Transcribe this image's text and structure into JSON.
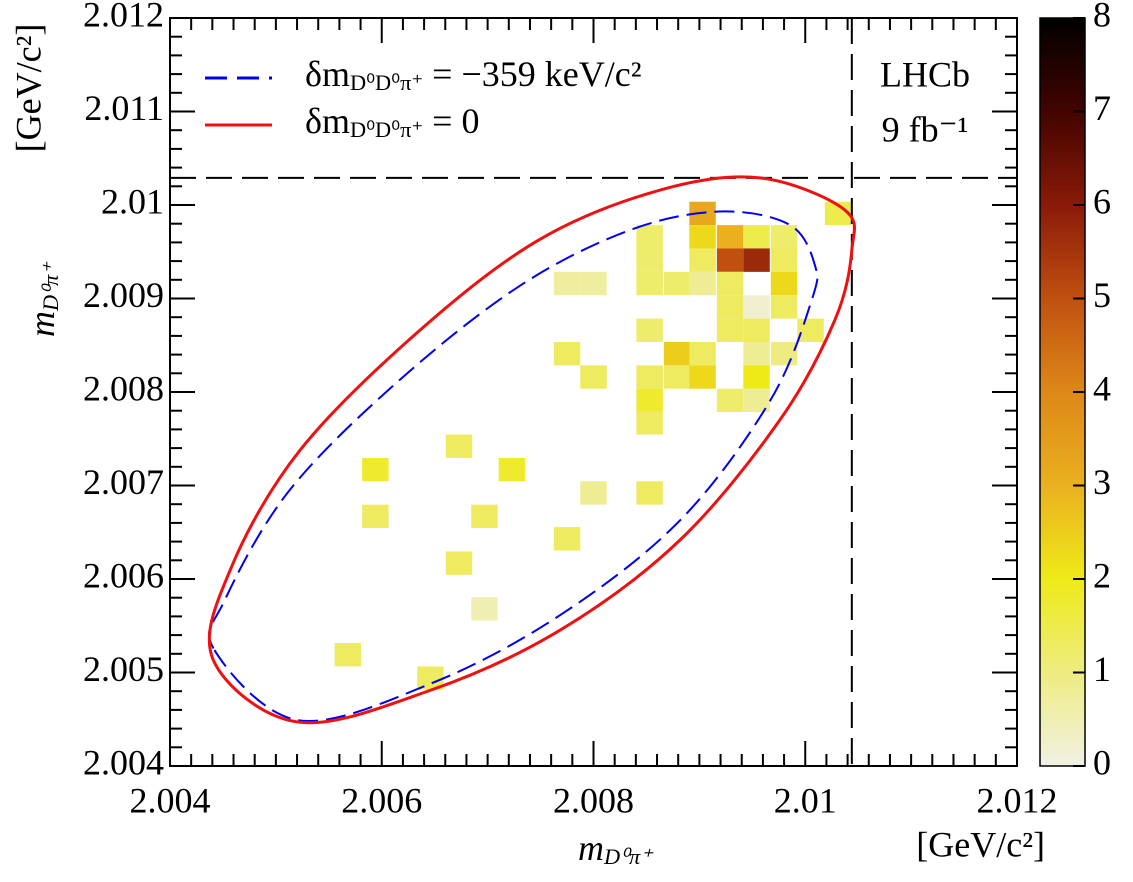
{
  "chart_data": {
    "type": "heatmap",
    "x": [
      2.00903,
      2.01031,
      2.00853,
      2.00903,
      2.00929,
      2.00954,
      2.0098,
      2.00853,
      2.00903,
      2.00929,
      2.00954,
      2.0098,
      2.00775,
      2.008,
      2.00853,
      2.00879,
      2.00903,
      2.00929,
      2.0098,
      2.00929,
      2.00954,
      2.0098,
      2.00853,
      2.00929,
      2.00954,
      2.01005,
      2.00775,
      2.00879,
      2.00903,
      2.00954,
      2.0098,
      2.008,
      2.00853,
      2.00879,
      2.00903,
      2.00954,
      2.00853,
      2.00929,
      2.00954,
      2.00853,
      2.00673,
      2.00594,
      2.00723,
      2.008,
      2.00853,
      2.00594,
      2.00697,
      2.00775,
      2.00673,
      2.00697,
      2.00568,
      2.00646
    ],
    "y": [
      2.00991,
      2.00991,
      2.00966,
      2.00966,
      2.00966,
      2.00966,
      2.00966,
      2.00941,
      2.00941,
      2.00941,
      2.00941,
      2.00941,
      2.00916,
      2.00916,
      2.00916,
      2.00916,
      2.00916,
      2.00916,
      2.00916,
      2.00891,
      2.00891,
      2.00891,
      2.00866,
      2.00866,
      2.00866,
      2.00866,
      2.00841,
      2.00841,
      2.00841,
      2.00841,
      2.00841,
      2.00816,
      2.00816,
      2.00816,
      2.00816,
      2.00816,
      2.00791,
      2.00791,
      2.00791,
      2.00767,
      2.00742,
      2.00717,
      2.00717,
      2.00692,
      2.00692,
      2.00667,
      2.00667,
      2.00643,
      2.00617,
      2.00568,
      2.00519,
      2.00494
    ],
    "values": [
      3.2,
      1.5,
      1.2,
      2.3,
      3.0,
      1.5,
      1.2,
      1.2,
      1.3,
      5.0,
      5.7,
      1.3,
      0.7,
      0.7,
      1.2,
      1.2,
      0.8,
      1.3,
      2.3,
      1.3,
      0.2,
      1.3,
      1.2,
      1.3,
      1.3,
      1.3,
      1.3,
      2.5,
      1.3,
      0.8,
      1.0,
      1.3,
      1.3,
      1.3,
      2.3,
      2.0,
      1.8,
      1.2,
      0.8,
      1.3,
      1.3,
      1.8,
      1.8,
      0.8,
      1.3,
      1.3,
      1.3,
      1.3,
      1.3,
      0.5,
      1.3,
      1.3
    ],
    "bin_size": 0.00025,
    "colormap": [
      "#f1f1e4",
      "#eeec80",
      "#eeea18",
      "#eab020",
      "#dd8818",
      "#c05010",
      "#8a1a08",
      "#420400",
      "#000000"
    ],
    "zlim": [
      0,
      8
    ],
    "zticks": [
      0,
      1,
      2,
      3,
      4,
      5,
      6,
      7,
      8
    ],
    "xlim": [
      2.004,
      2.012
    ],
    "ylim": [
      2.004,
      2.012
    ],
    "xticks": [
      2.004,
      2.006,
      2.008,
      2.01,
      2.012
    ],
    "yticks": [
      2.004,
      2.005,
      2.006,
      2.007,
      2.008,
      2.009,
      2.01,
      2.011,
      2.012
    ],
    "xminor": 10,
    "yminor": 5,
    "x_label": [
      {
        "t": "m"
      },
      {
        "t": "D⁰π⁺",
        "sub": true
      }
    ],
    "y_label": [
      {
        "t": "m"
      },
      {
        "t": "D⁰π⁺",
        "sub": true
      }
    ],
    "x_unit": "[GeV/c²]",
    "y_unit": "[GeV/c²]",
    "annotations": [
      "LHCb",
      "9 fb⁻¹"
    ],
    "reference_lines": {
      "x": 2.01044,
      "y": 2.01029
    },
    "legend": "upper left",
    "series": [
      {
        "name": [
          {
            "t": "δm"
          },
          {
            "t": "D⁰D⁰π⁺",
            "sub": true
          },
          {
            "t": " = −359 keV/c²"
          }
        ],
        "color": "#0000ee",
        "dashed": true,
        "x": [
          2.00442,
          2.00521,
          2.00646,
          2.00768,
          2.00882,
          2.00967,
          2.01006,
          2.01009,
          2.00985,
          2.00919,
          2.00834,
          2.00731,
          2.00617,
          2.00513,
          2.00452
        ],
        "y": [
          2.00524,
          2.00449,
          2.00488,
          2.00561,
          2.00663,
          2.00791,
          2.00898,
          2.00936,
          2.00979,
          2.00993,
          2.00973,
          2.00914,
          2.00813,
          2.00695,
          2.00578
        ]
      },
      {
        "name": [
          {
            "t": "δm"
          },
          {
            "t": "D⁰D⁰π⁺",
            "sub": true
          },
          {
            "t": " = 0"
          }
        ],
        "color": "#ee1111",
        "dashed": false,
        "x": [
          2.00441,
          2.00521,
          2.00646,
          2.00768,
          2.00882,
          2.00976,
          2.01028,
          2.01044,
          2.01037,
          2.00957,
          2.00863,
          2.00749,
          2.00636,
          2.00523,
          2.00457
        ],
        "y": [
          2.00513,
          2.00447,
          2.00481,
          2.00545,
          2.00642,
          2.0077,
          2.00877,
          2.00952,
          2.00995,
          2.01029,
          2.01016,
          2.00963,
          2.00866,
          2.00738,
          2.0061
        ]
      }
    ]
  }
}
